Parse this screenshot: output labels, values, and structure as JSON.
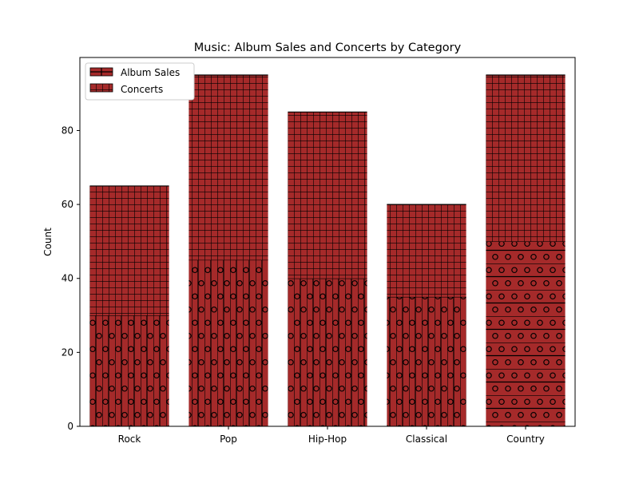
{
  "chart_data": {
    "type": "bar",
    "stacked": true,
    "title": "Music: Album Sales and Concerts by Category",
    "xlabel": "",
    "ylabel": "Count",
    "categories": [
      "Rock",
      "Pop",
      "Hip-Hop",
      "Classical",
      "Country"
    ],
    "series": [
      {
        "name": "Album Sales",
        "values": [
          30,
          45,
          40,
          35,
          50
        ]
      },
      {
        "name": "Concerts",
        "values": [
          35,
          50,
          45,
          25,
          45
        ]
      }
    ],
    "ylim": [
      0,
      99.75
    ],
    "yticks": [
      0,
      20,
      40,
      60,
      80
    ],
    "grid": false,
    "legend_position": "top-left",
    "colors": {
      "bar_fill": "#a52a2a",
      "hatch": "#000000",
      "axis": "#000000",
      "background": "#ffffff"
    }
  }
}
